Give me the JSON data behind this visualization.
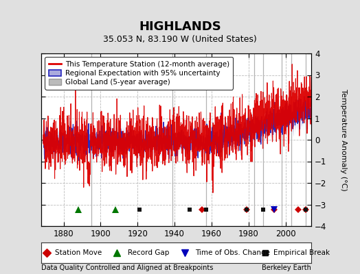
{
  "title": "HIGHLANDS",
  "subtitle": "35.053 N, 83.190 W (United States)",
  "ylabel": "Temperature Anomaly (°C)",
  "footer_left": "Data Quality Controlled and Aligned at Breakpoints",
  "footer_right": "Berkeley Earth",
  "ylim": [
    -4,
    4
  ],
  "xlim": [
    1868,
    2014
  ],
  "yticks": [
    -4,
    -3,
    -2,
    -1,
    0,
    1,
    2,
    3,
    4
  ],
  "xticks": [
    1880,
    1900,
    1920,
    1940,
    1960,
    1980,
    2000
  ],
  "background_color": "#e0e0e0",
  "plot_bg_color": "#ffffff",
  "grid_color": "#bbbbbb",
  "station_move_color": "#cc0000",
  "record_gap_color": "#007700",
  "obs_change_color": "#0000bb",
  "emp_break_color": "#111111",
  "red_line_color": "#dd0000",
  "blue_line_color": "#2222bb",
  "blue_fill_color": "#aaaadd",
  "gray_line_color": "#bbbbbb",
  "vertical_lines": [
    1895,
    1939,
    1957,
    1983,
    1988,
    1998,
    2003,
    2011
  ],
  "station_moves": [
    1955,
    1979,
    1994,
    2007,
    2011
  ],
  "record_gaps": [
    1888,
    1908
  ],
  "obs_changes": [
    1994
  ],
  "emp_breaks": [
    1921,
    1948,
    1957,
    1979,
    1988,
    2011
  ],
  "marker_y": -3.25
}
